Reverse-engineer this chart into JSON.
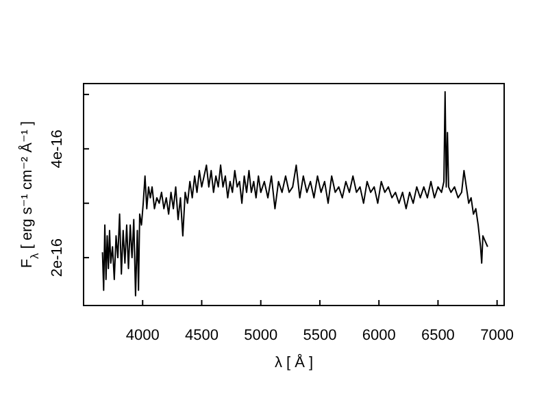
{
  "chart_data": {
    "type": "line",
    "xlabel": "λ [ Å ]",
    "ylabel": "F$_{λ}$ [ erg s⁻¹ cm⁻² Å⁻¹ ]",
    "xlim": [
      3500,
      7060
    ],
    "ylim": [
      1.12e-16,
      5.2e-16
    ],
    "xticks": [
      4000,
      4500,
      5000,
      5500,
      6000,
      6500,
      7000
    ],
    "yticks": [
      {
        "value": 2e-16,
        "label": "2e-16"
      },
      {
        "value": 3e-16,
        "label": null
      },
      {
        "value": 4e-16,
        "label": "4e-16"
      },
      {
        "value": 5e-16,
        "label": null
      }
    ],
    "grid": false,
    "marker": "none",
    "line_style": "solid",
    "series": [
      {
        "color": "#000000",
        "x": [
          3660,
          3670,
          3680,
          3690,
          3700,
          3710,
          3720,
          3730,
          3745,
          3760,
          3775,
          3790,
          3805,
          3820,
          3835,
          3850,
          3865,
          3880,
          3895,
          3910,
          3925,
          3940,
          3955,
          3965,
          3975,
          3990,
          4005,
          4020,
          4035,
          4050,
          4065,
          4080,
          4100,
          4120,
          4140,
          4160,
          4180,
          4200,
          4220,
          4240,
          4260,
          4280,
          4300,
          4320,
          4340,
          4360,
          4380,
          4400,
          4420,
          4440,
          4460,
          4480,
          4500,
          4520,
          4540,
          4560,
          4580,
          4600,
          4620,
          4640,
          4660,
          4680,
          4700,
          4720,
          4740,
          4760,
          4780,
          4800,
          4820,
          4840,
          4860,
          4880,
          4900,
          4920,
          4940,
          4960,
          4980,
          5000,
          5030,
          5060,
          5090,
          5120,
          5150,
          5180,
          5210,
          5240,
          5270,
          5300,
          5330,
          5360,
          5390,
          5420,
          5450,
          5480,
          5510,
          5540,
          5570,
          5600,
          5630,
          5660,
          5690,
          5720,
          5750,
          5780,
          5810,
          5840,
          5870,
          5900,
          5930,
          5960,
          5990,
          6020,
          6050,
          6080,
          6110,
          6140,
          6170,
          6200,
          6230,
          6260,
          6290,
          6320,
          6350,
          6380,
          6410,
          6440,
          6470,
          6500,
          6530,
          6550,
          6560,
          6570,
          6580,
          6590,
          6610,
          6640,
          6670,
          6700,
          6720,
          6740,
          6760,
          6780,
          6800,
          6820,
          6840,
          6860,
          6870,
          6880,
          6900,
          6920
        ],
        "values": [
          2.1e-16,
          1.4e-16,
          2.6e-16,
          1.6e-16,
          2.4e-16,
          1.8e-16,
          2.5e-16,
          1.9e-16,
          2.2e-16,
          1.6e-16,
          2.4e-16,
          2e-16,
          2.8e-16,
          1.7e-16,
          2.5e-16,
          1.9e-16,
          2.6e-16,
          1.8e-16,
          2.6e-16,
          2e-16,
          2.7e-16,
          1.3e-16,
          2.5e-16,
          1.4e-16,
          2.8e-16,
          2.6e-16,
          3e-16,
          3.5e-16,
          2.9e-16,
          3.3e-16,
          3.1e-16,
          3.3e-16,
          2.9e-16,
          3.1e-16,
          3e-16,
          3.2e-16,
          2.9e-16,
          3.1e-16,
          2.8e-16,
          3.2e-16,
          2.9e-16,
          3.3e-16,
          2.7e-16,
          3.1e-16,
          2.4e-16,
          3.2e-16,
          3e-16,
          3.4e-16,
          3.1e-16,
          3.5e-16,
          3.2e-16,
          3.6e-16,
          3.3e-16,
          3.5e-16,
          3.7e-16,
          3.3e-16,
          3.6e-16,
          3.2e-16,
          3.5e-16,
          3.3e-16,
          3.7e-16,
          3.3e-16,
          3.5e-16,
          3.1e-16,
          3.4e-16,
          3.2e-16,
          3.6e-16,
          3.3e-16,
          3.4e-16,
          3e-16,
          3.5e-16,
          3.2e-16,
          3.6e-16,
          3.2e-16,
          3.4e-16,
          3.1e-16,
          3.5e-16,
          3.2e-16,
          3.4e-16,
          3.1e-16,
          3.5e-16,
          2.9e-16,
          3.4e-16,
          3.2e-16,
          3.5e-16,
          3.2e-16,
          3.3e-16,
          3.7e-16,
          3.1e-16,
          3.5e-16,
          3.2e-16,
          3.4e-16,
          3.1e-16,
          3.5e-16,
          3.2e-16,
          3.4e-16,
          3e-16,
          3.5e-16,
          3.2e-16,
          3.3e-16,
          3.1e-16,
          3.4e-16,
          3.2e-16,
          3.5e-16,
          3.2e-16,
          3.3e-16,
          3e-16,
          3.4e-16,
          3.2e-16,
          3.3e-16,
          3e-16,
          3.4e-16,
          3.2e-16,
          3.3e-16,
          3.1e-16,
          3.2e-16,
          3e-16,
          3.2e-16,
          2.9e-16,
          3.2e-16,
          3e-16,
          3.3e-16,
          3.1e-16,
          3.3e-16,
          3.1e-16,
          3.4e-16,
          3.1e-16,
          3.3e-16,
          3.2e-16,
          3.4e-16,
          5.05e-16,
          3.3e-16,
          4.3e-16,
          3.3e-16,
          3.2e-16,
          3.3e-16,
          3.1e-16,
          3.2e-16,
          3.6e-16,
          3.3e-16,
          3e-16,
          3.1e-16,
          2.8e-16,
          2.9e-16,
          2.6e-16,
          2.2e-16,
          1.9e-16,
          2.4e-16,
          2.3e-16,
          2.2e-16
        ]
      }
    ]
  }
}
